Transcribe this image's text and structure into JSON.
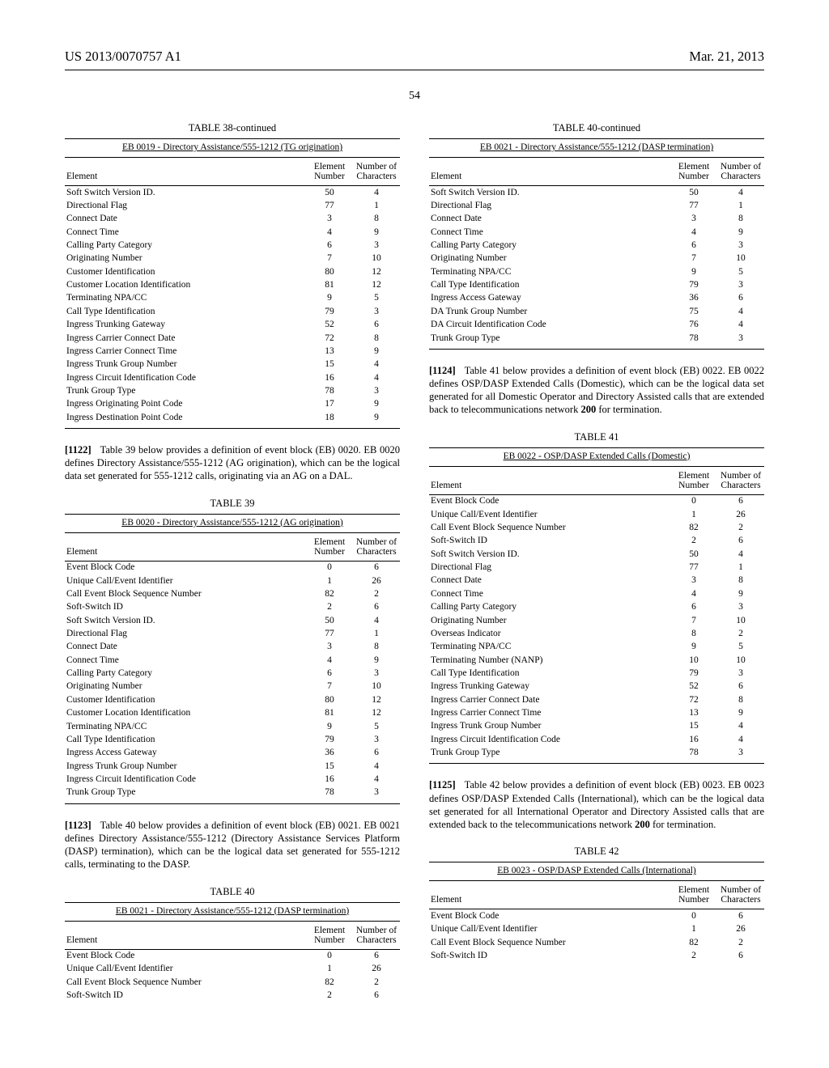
{
  "header": {
    "pub_no": "US 2013/0070757 A1",
    "date": "Mar. 21, 2013",
    "page": "54"
  },
  "col_headers": {
    "element": "Element",
    "num1": "Element",
    "num2": "Number",
    "chars1": "Number of",
    "chars2": "Characters"
  },
  "table38": {
    "caption": "TABLE 38-continued",
    "title": "EB 0019 - Directory Assistance/555-1212 (TG origination)",
    "rows": [
      [
        "Soft Switch Version ID.",
        "50",
        "4"
      ],
      [
        "Directional Flag",
        "77",
        "1"
      ],
      [
        "Connect Date",
        "3",
        "8"
      ],
      [
        "Connect Time",
        "4",
        "9"
      ],
      [
        "Calling Party Category",
        "6",
        "3"
      ],
      [
        "Originating Number",
        "7",
        "10"
      ],
      [
        "Customer Identification",
        "80",
        "12"
      ],
      [
        "Customer Location Identification",
        "81",
        "12"
      ],
      [
        "Terminating NPA/CC",
        "9",
        "5"
      ],
      [
        "Call Type Identification",
        "79",
        "3"
      ],
      [
        "Ingress Trunking Gateway",
        "52",
        "6"
      ],
      [
        "Ingress Carrier Connect Date",
        "72",
        "8"
      ],
      [
        "Ingress Carrier Connect Time",
        "13",
        "9"
      ],
      [
        "Ingress Trunk Group Number",
        "15",
        "4"
      ],
      [
        "Ingress Circuit Identification Code",
        "16",
        "4"
      ],
      [
        "Trunk Group Type",
        "78",
        "3"
      ],
      [
        "Ingress Originating Point Code",
        "17",
        "9"
      ],
      [
        "Ingress Destination Point Code",
        "18",
        "9"
      ]
    ]
  },
  "para1122": {
    "num": "[1122]",
    "text": "Table 39 below provides a definition of event block (EB) 0020. EB 0020 defines Directory Assistance/555-1212 (AG origination), which can be the logical data set generated for 555-1212 calls, originating via an AG on a DAL."
  },
  "table39": {
    "caption": "TABLE 39",
    "title": "EB 0020 - Directory Assistance/555-1212 (AG origination)",
    "rows": [
      [
        "Event Block Code",
        "0",
        "6"
      ],
      [
        "Unique Call/Event Identifier",
        "1",
        "26"
      ],
      [
        "Call Event Block Sequence Number",
        "82",
        "2"
      ],
      [
        "Soft-Switch ID",
        "2",
        "6"
      ],
      [
        "Soft Switch Version ID.",
        "50",
        "4"
      ],
      [
        "Directional Flag",
        "77",
        "1"
      ],
      [
        "Connect Date",
        "3",
        "8"
      ],
      [
        "Connect Time",
        "4",
        "9"
      ],
      [
        "Calling Party Category",
        "6",
        "3"
      ],
      [
        "Originating Number",
        "7",
        "10"
      ],
      [
        "Customer Identification",
        "80",
        "12"
      ],
      [
        "Customer Location Identification",
        "81",
        "12"
      ],
      [
        "Terminating NPA/CC",
        "9",
        "5"
      ],
      [
        "Call Type Identification",
        "79",
        "3"
      ],
      [
        "Ingress Access Gateway",
        "36",
        "6"
      ],
      [
        "Ingress Trunk Group Number",
        "15",
        "4"
      ],
      [
        "Ingress Circuit Identification Code",
        "16",
        "4"
      ],
      [
        "Trunk Group Type",
        "78",
        "3"
      ]
    ]
  },
  "para1123": {
    "num": "[1123]",
    "text": "Table 40 below provides a definition of event block (EB) 0021. EB 0021 defines Directory Assistance/555-1212 (Directory Assistance Services Platform (DASP) termination), which can be the logical data set generated for 555-1212 calls, terminating to the DASP."
  },
  "table40a": {
    "caption": "TABLE 40",
    "title": "EB 0021 - Directory Assistance/555-1212 (DASP termination)",
    "rows": [
      [
        "Event Block Code",
        "0",
        "6"
      ],
      [
        "Unique Call/Event Identifier",
        "1",
        "26"
      ],
      [
        "Call Event Block Sequence Number",
        "82",
        "2"
      ],
      [
        "Soft-Switch ID",
        "2",
        "6"
      ]
    ]
  },
  "table40b": {
    "caption": "TABLE 40-continued",
    "title": "EB 0021 - Directory Assistance/555-1212 (DASP termination)",
    "rows": [
      [
        "Soft Switch Version ID.",
        "50",
        "4"
      ],
      [
        "Directional Flag",
        "77",
        "1"
      ],
      [
        "Connect Date",
        "3",
        "8"
      ],
      [
        "Connect Time",
        "4",
        "9"
      ],
      [
        "Calling Party Category",
        "6",
        "3"
      ],
      [
        "Originating Number",
        "7",
        "10"
      ],
      [
        "Terminating NPA/CC",
        "9",
        "5"
      ],
      [
        "Call Type Identification",
        "79",
        "3"
      ],
      [
        "Ingress Access Gateway",
        "36",
        "6"
      ],
      [
        "DA Trunk Group Number",
        "75",
        "4"
      ],
      [
        "DA Circuit Identification Code",
        "76",
        "4"
      ],
      [
        "Trunk Group Type",
        "78",
        "3"
      ]
    ]
  },
  "para1124": {
    "num": "[1124]",
    "text_a": "Table 41 below provides a definition of event block (EB) 0022. EB 0022 defines OSP/DASP Extended Calls (Domestic), which can be the logical data set generated for all Domestic Operator and Directory Assisted calls that are extended back to telecommunications network ",
    "refnum": "200",
    "text_b": " for termination."
  },
  "table41": {
    "caption": "TABLE 41",
    "title": "EB 0022 - OSP/DASP Extended Calls (Domestic)",
    "rows": [
      [
        "Event Block Code",
        "0",
        "6"
      ],
      [
        "Unique Call/Event Identifier",
        "1",
        "26"
      ],
      [
        "Call Event Block Sequence Number",
        "82",
        "2"
      ],
      [
        "Soft-Switch ID",
        "2",
        "6"
      ],
      [
        "Soft Switch Version ID.",
        "50",
        "4"
      ],
      [
        "Directional Flag",
        "77",
        "1"
      ],
      [
        "Connect Date",
        "3",
        "8"
      ],
      [
        "Connect Time",
        "4",
        "9"
      ],
      [
        "Calling Party Category",
        "6",
        "3"
      ],
      [
        "Originating Number",
        "7",
        "10"
      ],
      [
        "Overseas Indicator",
        "8",
        "2"
      ],
      [
        "Terminating NPA/CC",
        "9",
        "5"
      ],
      [
        "Terminating Number (NANP)",
        "10",
        "10"
      ],
      [
        "Call Type Identification",
        "79",
        "3"
      ],
      [
        "Ingress Trunking Gateway",
        "52",
        "6"
      ],
      [
        "Ingress Carrier Connect Date",
        "72",
        "8"
      ],
      [
        "Ingress Carrier Connect Time",
        "13",
        "9"
      ],
      [
        "Ingress Trunk Group Number",
        "15",
        "4"
      ],
      [
        "Ingress Circuit Identification Code",
        "16",
        "4"
      ],
      [
        "Trunk Group Type",
        "78",
        "3"
      ]
    ]
  },
  "para1125": {
    "num": "[1125]",
    "text_a": "Table 42 below provides a definition of event block (EB) 0023. EB 0023 defines OSP/DASP Extended Calls (International), which can be the logical data set generated for all International Operator and Directory Assisted calls that are extended back to the telecommunications network ",
    "refnum": "200",
    "text_b": " for termination."
  },
  "table42": {
    "caption": "TABLE 42",
    "title": "EB 0023 - OSP/DASP Extended Calls (International)",
    "rows": [
      [
        "Event Block Code",
        "0",
        "6"
      ],
      [
        "Unique Call/Event Identifier",
        "1",
        "26"
      ],
      [
        "Call Event Block Sequence Number",
        "82",
        "2"
      ],
      [
        "Soft-Switch ID",
        "2",
        "6"
      ]
    ]
  }
}
